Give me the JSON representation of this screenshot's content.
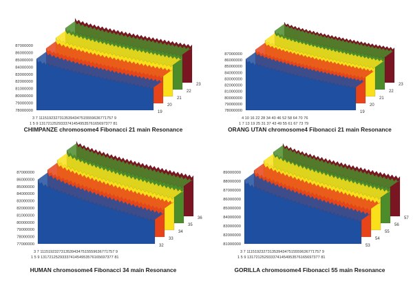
{
  "colors": {
    "blue": "#1f4fa0",
    "red": "#e8441a",
    "orange": "#f7941d",
    "yellow": "#f9e01b",
    "lightgreen": "#a6ce39",
    "green": "#4c8c2b",
    "darkred": "#7a1522"
  },
  "chart_data": [
    {
      "type": "area",
      "title": "CHIMPANZE chromosome4 Fibonacci 21 main Resonance",
      "y_ticks": [
        "87000000",
        "86000000",
        "85000000",
        "84000000",
        "83000000",
        "82000000",
        "81000000",
        "80000000",
        "79000000",
        "78000000"
      ],
      "ylim": [
        78000000,
        87000000
      ],
      "x_ticks_row1": "3 7 11151923273135394347515559636771757 9",
      "x_ticks_row2": "1 5 9 1317212529333741454953576165697377 81",
      "series_labels": [
        "19",
        "20",
        "21",
        "22",
        "23"
      ],
      "series": [
        {
          "name": "19",
          "start": 85000000,
          "end": 81000000
        },
        {
          "name": "20",
          "start": 85500000,
          "end": 81600000
        },
        {
          "name": "21",
          "start": 86000000,
          "end": 82200000
        },
        {
          "name": "22",
          "start": 86400000,
          "end": 82700000
        },
        {
          "name": "23",
          "start": 86800000,
          "end": 83100000
        }
      ]
    },
    {
      "type": "area",
      "title": "ORANG UTAN chromosome4 Fibonacci 21 main Resonance",
      "y_ticks": [
        "87000000",
        "86000000",
        "85000000",
        "84000000",
        "83000000",
        "82000000",
        "81000000",
        "80000000",
        "79000000",
        "78000000"
      ],
      "ylim": [
        78000000,
        87000000
      ],
      "x_ticks_row1": "4 10 16 22 28 34 40 46 52 58 64 70 76",
      "x_ticks_row2": "1 7 13 19 25 31 37 43 49 55 61 67 73 79",
      "series_labels": [
        "19",
        "20",
        "21",
        "22",
        "23"
      ],
      "series": [
        {
          "name": "19",
          "start": 86000000,
          "end": 81500000
        },
        {
          "name": "20",
          "start": 86400000,
          "end": 82000000
        },
        {
          "name": "21",
          "start": 86800000,
          "end": 82500000
        },
        {
          "name": "22",
          "start": 87200000,
          "end": 83000000
        },
        {
          "name": "23",
          "start": 87500000,
          "end": 83400000
        }
      ]
    },
    {
      "type": "area",
      "title": "HUMAN chromosome4 Fibonacci 34 main Resonance",
      "y_ticks": [
        "87000000",
        "86000000",
        "85000000",
        "84000000",
        "83000000",
        "82000000",
        "81000000",
        "80000000",
        "79000000",
        "78000000",
        "77000000"
      ],
      "ylim": [
        77000000,
        87000000
      ],
      "x_ticks_row1": "3 7 11151923273135394347515559636771757 9",
      "x_ticks_row2": "1 5 9 1317212529333741454953576165697377 81",
      "series_labels": [
        "32",
        "33",
        "34",
        "35",
        "36"
      ],
      "series": [
        {
          "name": "32",
          "start": 85800000,
          "end": 80200000
        },
        {
          "name": "33",
          "start": 86200000,
          "end": 80800000
        },
        {
          "name": "34",
          "start": 86600000,
          "end": 81400000
        },
        {
          "name": "35",
          "start": 87000000,
          "end": 82000000
        },
        {
          "name": "36",
          "start": 87300000,
          "end": 82500000
        }
      ]
    },
    {
      "type": "area",
      "title": "GORILLA chromosome4  Fibonacci 55 main Resonance",
      "y_ticks": [
        "89000000",
        "88000000",
        "87000000",
        "86000000",
        "85000000",
        "84000000",
        "83000000",
        "82000000",
        "81000000"
      ],
      "ylim": [
        81000000,
        89000000
      ],
      "x_ticks_row1": "3 7 11151923273135394347515559636771757 9",
      "x_ticks_row2": "1 5 9 1317212529333741454953576165697377 81",
      "series_labels": [
        "53",
        "54",
        "55",
        "56",
        "57"
      ],
      "series": [
        {
          "name": "53",
          "start": 88000000,
          "end": 83500000
        },
        {
          "name": "54",
          "start": 88300000,
          "end": 84000000
        },
        {
          "name": "55",
          "start": 88600000,
          "end": 84500000
        },
        {
          "name": "56",
          "start": 88800000,
          "end": 84900000
        },
        {
          "name": "57",
          "start": 89000000,
          "end": 85300000
        }
      ]
    }
  ]
}
